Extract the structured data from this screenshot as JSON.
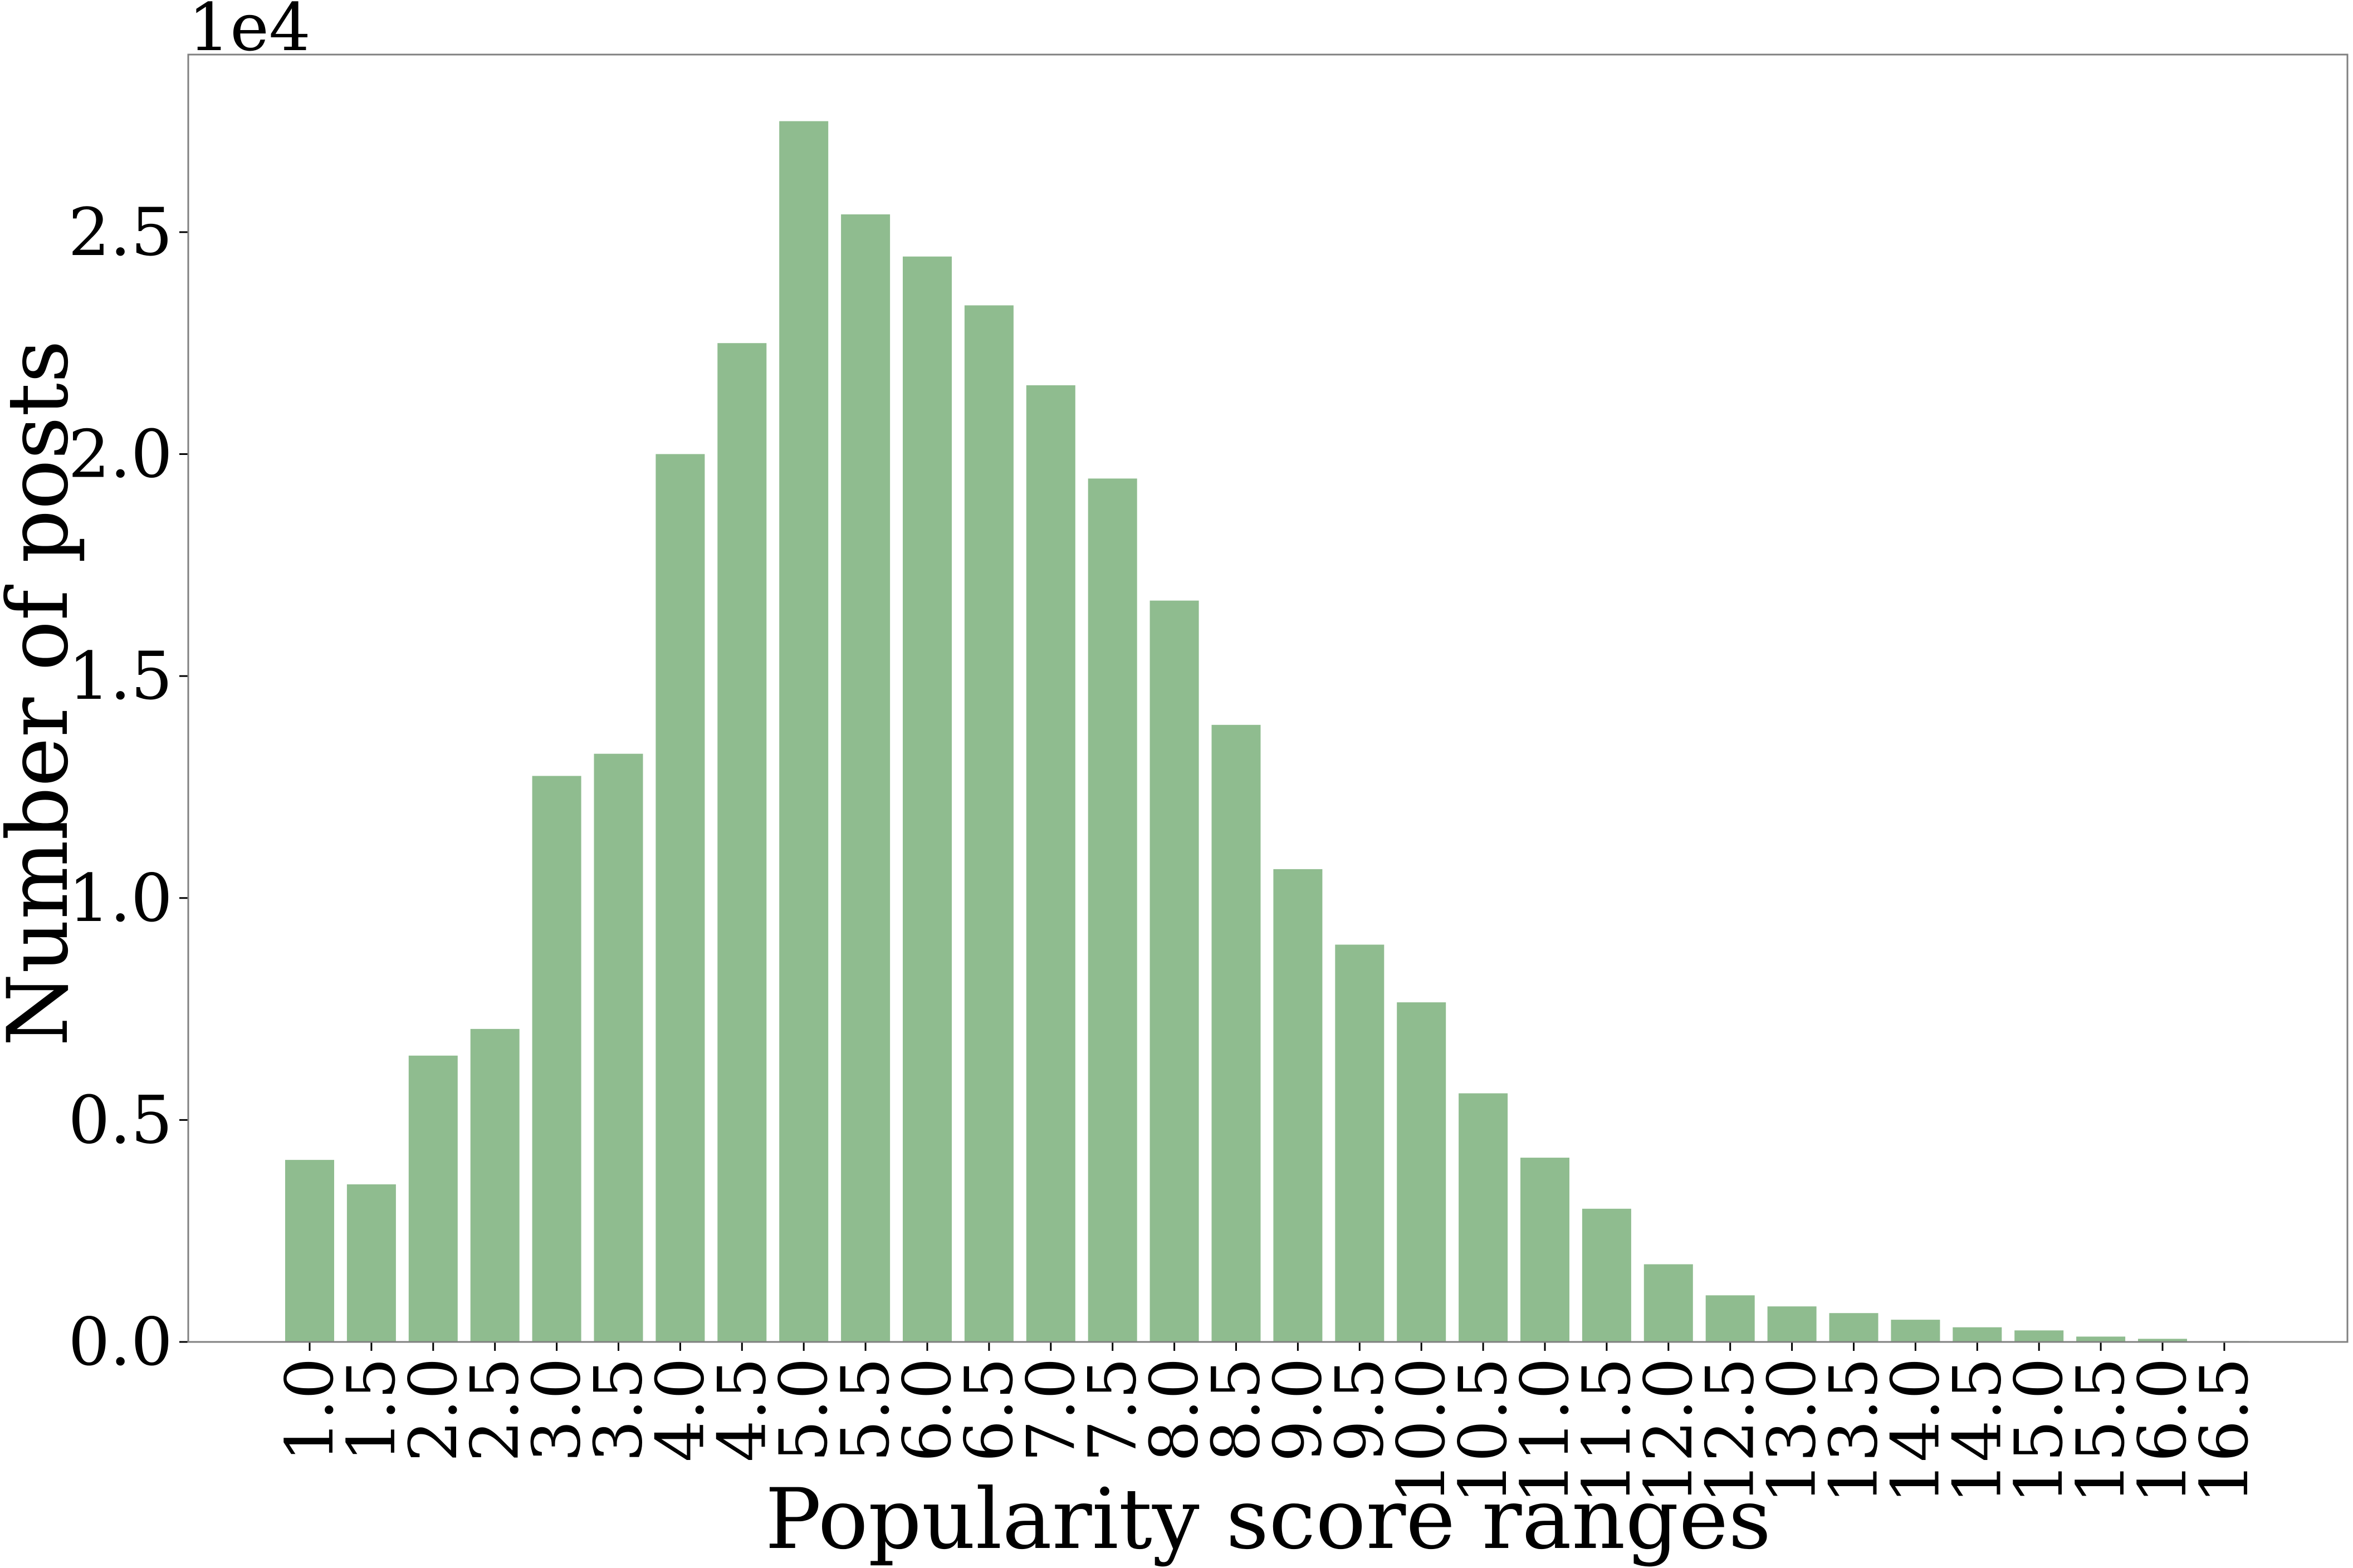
{
  "chart_data": {
    "type": "bar",
    "title": "",
    "xlabel": "Popularity score ranges",
    "ylabel": "Number of posts",
    "offset_label": "1e4",
    "ylim": [
      0,
      29000
    ],
    "yticks": [
      0,
      5000,
      10000,
      15000,
      20000,
      25000
    ],
    "ytick_labels": [
      "0.0",
      "0.5",
      "1.0",
      "1.5",
      "2.0",
      "2.5"
    ],
    "categories": [
      "1.0",
      "1.5",
      "2.0",
      "2.5",
      "3.0",
      "3.5",
      "4.0",
      "4.5",
      "5.0",
      "5.5",
      "6.0",
      "6.5",
      "7.0",
      "7.5",
      "8.0",
      "8.5",
      "9.0",
      "9.5",
      "10.0",
      "10.5",
      "11.0",
      "11.5",
      "12.0",
      "12.5",
      "13.0",
      "13.5",
      "14.0",
      "14.5",
      "15.0",
      "15.5",
      "16.0",
      "16.5"
    ],
    "values": [
      4100,
      3550,
      6450,
      7050,
      12750,
      13250,
      20000,
      22500,
      27500,
      25400,
      24450,
      23350,
      21550,
      19450,
      16700,
      13900,
      10650,
      8950,
      7650,
      5600,
      4150,
      3000,
      1750,
      1050,
      800,
      650,
      500,
      330,
      260,
      120,
      70,
      20
    ],
    "grid": false,
    "legend": "none",
    "bar_color": "#8fbc8f",
    "axis_color": "#808080"
  }
}
